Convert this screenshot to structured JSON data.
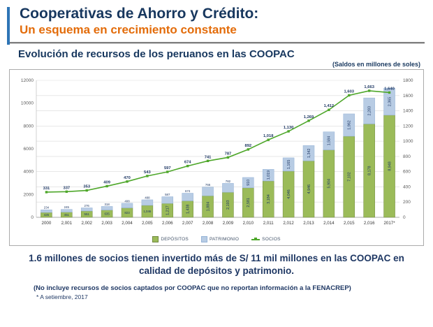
{
  "slide": {
    "title": "Cooperativas de Ahorro y Crédito:",
    "subtitle": "Un esquema en crecimiento constante",
    "section_title": "Evolución de recursos de los peruanos en las COOPAC",
    "units_note": "(Saldos en millones de soles)",
    "statement": "1.6 millones de socios tienen invertido más de S/ 11 mil millones en las COOPAC en calidad de depósitos y patrimonio.",
    "footnote": "(No incluye recursos de socios captados por COOPAC que no reportan información a la FENACREP)",
    "footnote2": "* A setiembre, 2017"
  },
  "colors": {
    "title_navy": "#17375E",
    "accent_orange": "#E36C0A",
    "text_navy": "#1F3864",
    "deposits_green": "#9BBB59",
    "patrimonio_blue": "#B8CCE4",
    "line_green": "#4EA72A",
    "gridline": "#D9D9D9",
    "axis_text": "#595959"
  },
  "chart_data": {
    "type": "bar",
    "subtype": "stacked-bars-with-line",
    "title": "Evolución de recursos de los peruanos en las COOPAC",
    "units": "Saldos en millones de soles",
    "categories": [
      "2000",
      "2,001",
      "2,002",
      "2,003",
      "2,004",
      "2,005",
      "2,006",
      "2,007",
      "2,008",
      "2,009",
      "2,010",
      "2,011",
      "2,012",
      "2,013",
      "2,014",
      "2,015",
      "2,016",
      "2017*"
    ],
    "series": [
      {
        "name": "DEPÓSITOS",
        "type": "bar",
        "color": "#9BBB59",
        "stroke": "#71893F",
        "values": [
          425,
          451,
          551,
          635,
          823,
          1046,
          1217,
          1438,
          1884,
          2193,
          2581,
          3184,
          4046,
          4946,
          5904,
          7102,
          8178,
          8948
        ]
      },
      {
        "name": "PATRIMONIO",
        "type": "bar",
        "color": "#B8CCE4",
        "stroke": "#95B3D7",
        "values": [
          234,
          245,
          276,
          318,
          408,
          488,
          587,
          674,
          766,
          782,
          910,
          1019,
          1165,
          1342,
          1584,
          1962,
          2283,
          2365
        ]
      },
      {
        "name": "SOCIOS",
        "type": "line",
        "color": "#4EA72A",
        "axis": "right",
        "values": [
          331,
          337,
          353,
          409,
          470,
          543,
          597,
          674,
          741,
          787,
          892,
          1018,
          1130,
          1269,
          1412,
          1603,
          1663,
          1640
        ]
      }
    ],
    "left_axis": {
      "min": 0,
      "max": 12000,
      "step": 2000,
      "ticks": [
        0,
        2000,
        4000,
        6000,
        8000,
        10000,
        12000
      ]
    },
    "right_axis": {
      "min": 0,
      "max": 1800,
      "step": 200,
      "ticks": [
        0,
        200,
        400,
        600,
        800,
        1000,
        1200,
        1400,
        1600,
        1800
      ]
    },
    "grid": true,
    "legend_position": "bottom"
  }
}
